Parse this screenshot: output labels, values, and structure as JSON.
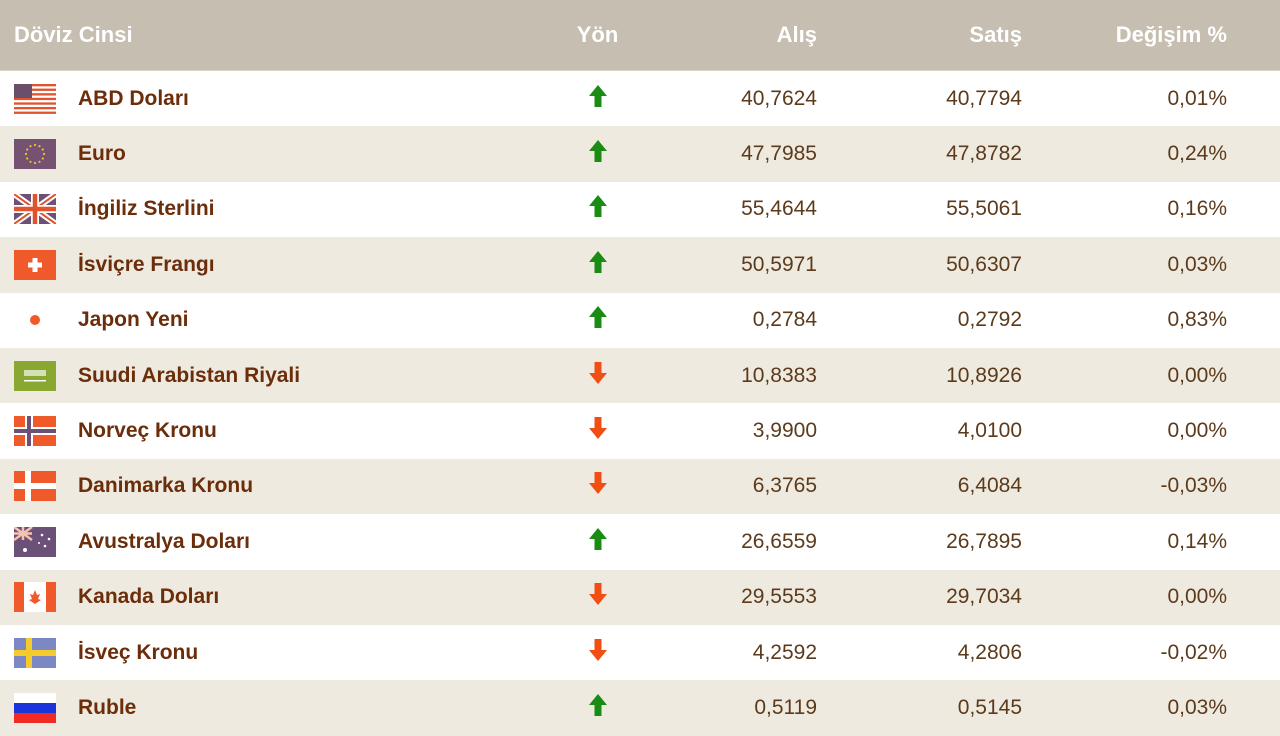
{
  "header": {
    "currency": "Döviz Cinsi",
    "direction": "Yön",
    "buy": "Alış",
    "sell": "Satış",
    "change": "Değişim %"
  },
  "colors": {
    "up": "#1a8c14",
    "down": "#f04e12",
    "header_bg": "#c6bfb1",
    "alt_row": "#efeadf",
    "name": "#6b2d0a"
  },
  "rows": [
    {
      "flag": "us-flag-icon",
      "name": "ABD Doları",
      "dir": "up",
      "buy": "40,7624",
      "sell": "40,7794",
      "change": "0,01%"
    },
    {
      "flag": "eu-flag-icon",
      "name": "Euro",
      "dir": "up",
      "buy": "47,7985",
      "sell": "47,8782",
      "change": "0,24%"
    },
    {
      "flag": "gb-flag-icon",
      "name": "İngiliz Sterlini",
      "dir": "up",
      "buy": "55,4644",
      "sell": "55,5061",
      "change": "0,16%"
    },
    {
      "flag": "ch-flag-icon",
      "name": "İsviçre Frangı",
      "dir": "up",
      "buy": "50,5971",
      "sell": "50,6307",
      "change": "0,03%"
    },
    {
      "flag": "jp-flag-icon",
      "name": "Japon Yeni",
      "dir": "up",
      "buy": "0,2784",
      "sell": "0,2792",
      "change": "0,83%"
    },
    {
      "flag": "sa-flag-icon",
      "name": "Suudi Arabistan Riyali",
      "dir": "down",
      "buy": "10,8383",
      "sell": "10,8926",
      "change": "0,00%"
    },
    {
      "flag": "no-flag-icon",
      "name": "Norveç Kronu",
      "dir": "down",
      "buy": "3,9900",
      "sell": "4,0100",
      "change": "0,00%"
    },
    {
      "flag": "dk-flag-icon",
      "name": "Danimarka Kronu",
      "dir": "down",
      "buy": "6,3765",
      "sell": "6,4084",
      "change": "-0,03%"
    },
    {
      "flag": "au-flag-icon",
      "name": "Avustralya Doları",
      "dir": "up",
      "buy": "26,6559",
      "sell": "26,7895",
      "change": "0,14%"
    },
    {
      "flag": "ca-flag-icon",
      "name": "Kanada Doları",
      "dir": "down",
      "buy": "29,5553",
      "sell": "29,7034",
      "change": "0,00%"
    },
    {
      "flag": "se-flag-icon",
      "name": "İsveç Kronu",
      "dir": "down",
      "buy": "4,2592",
      "sell": "4,2806",
      "change": "-0,02%"
    },
    {
      "flag": "ru-flag-icon",
      "name": "Ruble",
      "dir": "up",
      "buy": "0,5119",
      "sell": "0,5145",
      "change": "0,03%"
    }
  ]
}
